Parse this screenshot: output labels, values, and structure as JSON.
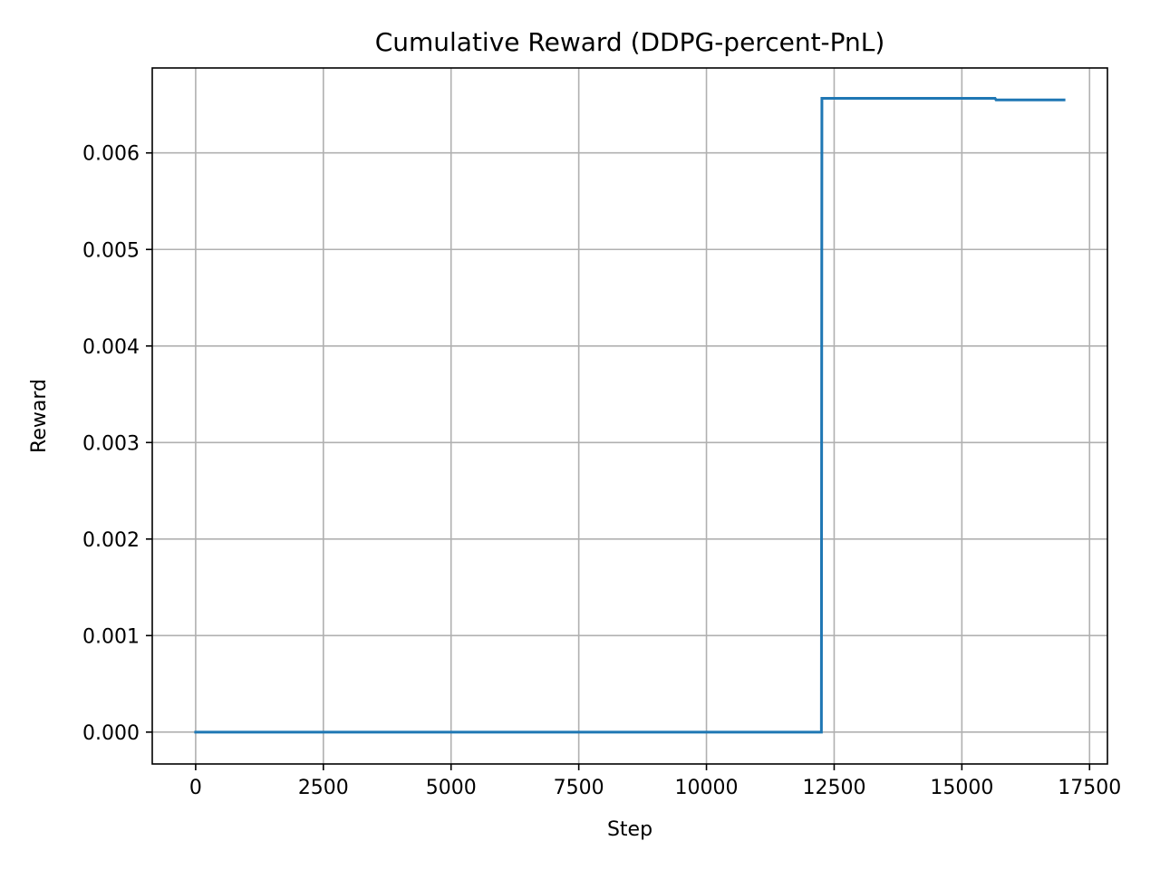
{
  "chart_data": {
    "type": "line",
    "title": "Cumulative Reward (DDPG-percent-PnL)",
    "xlabel": "Step",
    "ylabel": "Reward",
    "xlim": [
      -850,
      17850
    ],
    "ylim": [
      -0.00033,
      0.00688
    ],
    "x_ticks": [
      0,
      2500,
      5000,
      7500,
      10000,
      12500,
      15000,
      17500
    ],
    "x_tick_labels": [
      "0",
      "2500",
      "5000",
      "7500",
      "10000",
      "12500",
      "15000",
      "17500"
    ],
    "y_ticks": [
      0.0,
      0.001,
      0.002,
      0.003,
      0.004,
      0.005,
      0.006
    ],
    "y_tick_labels": [
      "0.000",
      "0.001",
      "0.002",
      "0.003",
      "0.004",
      "0.005",
      "0.006"
    ],
    "grid": true,
    "legend": false,
    "series": [
      {
        "color": "#1f77b4",
        "points": [
          [
            0,
            0.0
          ],
          [
            12250,
            0.0
          ],
          [
            12260,
            0.006565
          ],
          [
            15650,
            0.006565
          ],
          [
            15670,
            0.006549
          ],
          [
            17000,
            0.006549
          ]
        ]
      }
    ]
  }
}
